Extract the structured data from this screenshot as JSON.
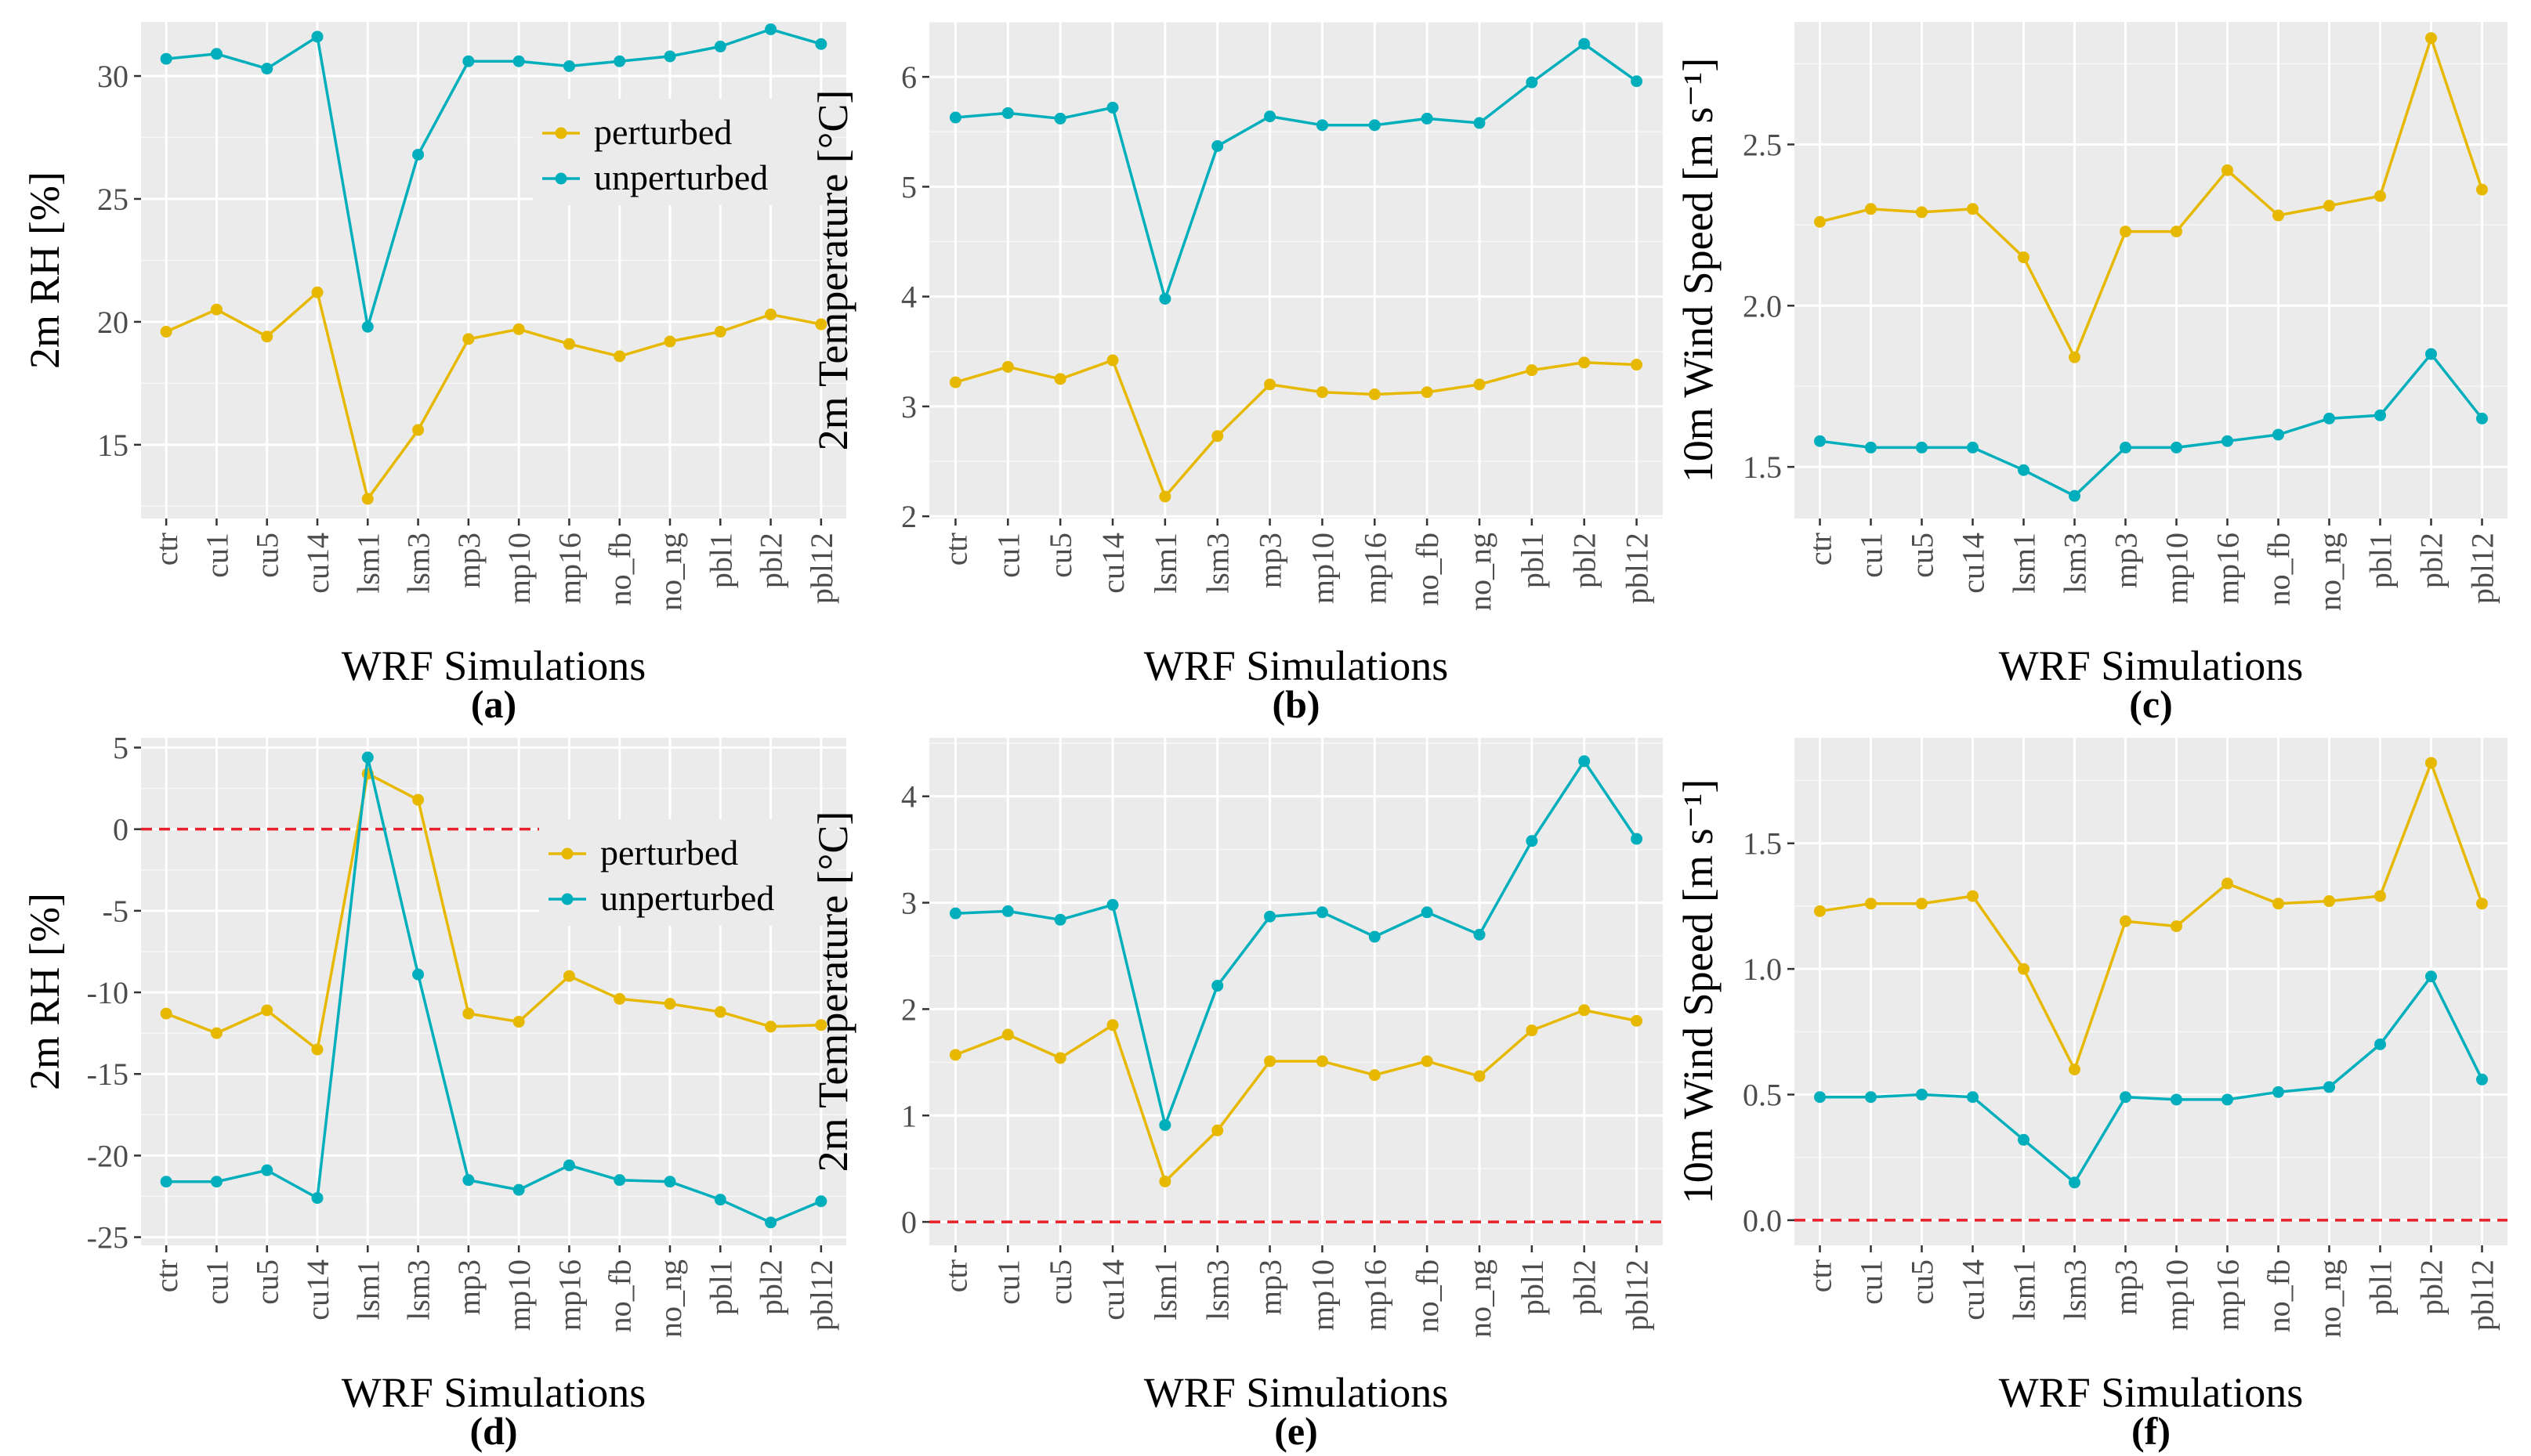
{
  "chart_data": [
    {
      "panel": "(a)",
      "type": "line",
      "categories": [
        "ctr",
        "cu1",
        "cu5",
        "cu14",
        "lsm1",
        "lsm3",
        "mp3",
        "mp10",
        "mp16",
        "no_fb",
        "no_ng",
        "pbl1",
        "pbl2",
        "pbl12"
      ],
      "series": [
        {
          "name": "perturbed",
          "color": "#E7B800",
          "values": [
            19.6,
            20.5,
            19.4,
            21.2,
            12.8,
            15.6,
            19.3,
            19.7,
            19.1,
            18.6,
            19.2,
            19.6,
            20.3,
            19.9
          ]
        },
        {
          "name": "unperturbed",
          "color": "#00AFBB",
          "values": [
            30.7,
            30.9,
            30.3,
            31.6,
            19.8,
            26.8,
            30.6,
            30.6,
            30.4,
            30.6,
            30.8,
            31.2,
            31.9,
            31.3
          ]
        }
      ],
      "title": "",
      "xlabel": "WRF Simulations",
      "ylabel": "2m RH [%]",
      "ylim": [
        12,
        32.2
      ],
      "yticks": [
        15,
        20,
        25,
        30
      ],
      "ytick_labels": [
        "15",
        "20",
        "25",
        "30"
      ],
      "legend": {
        "position": "top-right",
        "entries": [
          "perturbed",
          "unperturbed"
        ]
      },
      "zero_line": false,
      "grid": true
    },
    {
      "panel": "(b)",
      "type": "line",
      "categories": [
        "ctr",
        "cu1",
        "cu5",
        "cu14",
        "lsm1",
        "lsm3",
        "mp3",
        "mp10",
        "mp16",
        "no_fb",
        "no_ng",
        "pbl1",
        "pbl2",
        "pbl12"
      ],
      "series": [
        {
          "name": "perturbed",
          "color": "#E7B800",
          "values": [
            3.22,
            3.36,
            3.25,
            3.42,
            2.18,
            2.73,
            3.2,
            3.13,
            3.11,
            3.13,
            3.2,
            3.33,
            3.4,
            3.38
          ]
        },
        {
          "name": "unperturbed",
          "color": "#00AFBB",
          "values": [
            5.63,
            5.67,
            5.62,
            5.72,
            3.98,
            5.37,
            5.64,
            5.56,
            5.56,
            5.62,
            5.58,
            5.95,
            6.3,
            5.96
          ]
        }
      ],
      "title": "",
      "xlabel": "WRF Simulations",
      "ylabel": "2m Temperature [°C]",
      "ylim": [
        1.98,
        6.5
      ],
      "yticks": [
        2,
        3,
        4,
        5,
        6
      ],
      "ytick_labels": [
        "2",
        "3",
        "4",
        "5",
        "6"
      ],
      "legend": null,
      "zero_line": false,
      "grid": true
    },
    {
      "panel": "(c)",
      "type": "line",
      "categories": [
        "ctr",
        "cu1",
        "cu5",
        "cu14",
        "lsm1",
        "lsm3",
        "mp3",
        "mp10",
        "mp16",
        "no_fb",
        "no_ng",
        "pbl1",
        "pbl2",
        "pbl12"
      ],
      "series": [
        {
          "name": "perturbed",
          "color": "#E7B800",
          "values": [
            2.26,
            2.3,
            2.29,
            2.3,
            2.15,
            1.84,
            2.23,
            2.23,
            2.42,
            2.28,
            2.31,
            2.34,
            2.83,
            2.36
          ]
        },
        {
          "name": "unperturbed",
          "color": "#00AFBB",
          "values": [
            1.58,
            1.56,
            1.56,
            1.56,
            1.49,
            1.41,
            1.56,
            1.56,
            1.58,
            1.6,
            1.65,
            1.66,
            1.85,
            1.65
          ]
        }
      ],
      "title": "",
      "xlabel": "WRF Simulations",
      "ylabel": "10m Wind Speed [m s⁻¹]",
      "ylim": [
        1.34,
        2.88
      ],
      "yticks": [
        1.5,
        2.0,
        2.5
      ],
      "ytick_labels": [
        "1.5",
        "2.0",
        "2.5"
      ],
      "legend": null,
      "zero_line": false,
      "grid": true
    },
    {
      "panel": "(d)",
      "type": "line",
      "categories": [
        "ctr",
        "cu1",
        "cu5",
        "cu14",
        "lsm1",
        "lsm3",
        "mp3",
        "mp10",
        "mp16",
        "no_fb",
        "no_ng",
        "pbl1",
        "pbl2",
        "pbl12"
      ],
      "series": [
        {
          "name": "perturbed",
          "color": "#E7B800",
          "values": [
            -11.3,
            -12.5,
            -11.1,
            -13.5,
            3.4,
            1.8,
            -11.3,
            -11.8,
            -9,
            -10.4,
            -10.7,
            -11.2,
            -12.1,
            -12
          ]
        },
        {
          "name": "unperturbed",
          "color": "#00AFBB",
          "values": [
            -21.6,
            -21.6,
            -20.9,
            -22.6,
            4.4,
            -8.9,
            -21.5,
            -22.1,
            -20.6,
            -21.5,
            -21.6,
            -22.7,
            -24.1,
            -22.8
          ]
        }
      ],
      "title": "",
      "xlabel": "WRF Simulations",
      "ylabel": "2m RH [%]",
      "ylim": [
        -25.5,
        5.6
      ],
      "yticks": [
        -25,
        -20,
        -15,
        -10,
        -5,
        0,
        5
      ],
      "ytick_labels": [
        "-25",
        "-20",
        "-15",
        "-10",
        "-5",
        "0",
        "5"
      ],
      "legend": {
        "position": "top-right",
        "entries": [
          "perturbed",
          "unperturbed"
        ]
      },
      "zero_line": true,
      "grid": true
    },
    {
      "panel": "(e)",
      "type": "line",
      "categories": [
        "ctr",
        "cu1",
        "cu5",
        "cu14",
        "lsm1",
        "lsm3",
        "mp3",
        "mp10",
        "mp16",
        "no_fb",
        "no_ng",
        "pbl1",
        "pbl2",
        "pbl12"
      ],
      "series": [
        {
          "name": "perturbed",
          "color": "#E7B800",
          "values": [
            1.57,
            1.76,
            1.54,
            1.85,
            0.38,
            0.86,
            1.51,
            1.51,
            1.38,
            1.51,
            1.37,
            1.8,
            1.99,
            1.89
          ]
        },
        {
          "name": "unperturbed",
          "color": "#00AFBB",
          "values": [
            2.9,
            2.92,
            2.84,
            2.98,
            0.91,
            2.22,
            2.87,
            2.91,
            2.68,
            2.91,
            2.7,
            3.58,
            4.33,
            3.6
          ]
        }
      ],
      "title": "",
      "xlabel": "WRF Simulations",
      "ylabel": "2m Temperature [°C]",
      "ylim": [
        -0.22,
        4.55
      ],
      "yticks": [
        0,
        1,
        2,
        3,
        4
      ],
      "ytick_labels": [
        "0",
        "1",
        "2",
        "3",
        "4"
      ],
      "legend": null,
      "zero_line": true,
      "grid": true
    },
    {
      "panel": "(f)",
      "type": "line",
      "categories": [
        "ctr",
        "cu1",
        "cu5",
        "cu14",
        "lsm1",
        "lsm3",
        "mp3",
        "mp10",
        "mp16",
        "no_fb",
        "no_ng",
        "pbl1",
        "pbl2",
        "pbl12"
      ],
      "series": [
        {
          "name": "perturbed",
          "color": "#E7B800",
          "values": [
            1.23,
            1.26,
            1.26,
            1.29,
            1,
            0.6,
            1.19,
            1.17,
            1.34,
            1.26,
            1.27,
            1.29,
            1.82,
            1.26
          ]
        },
        {
          "name": "unperturbed",
          "color": "#00AFBB",
          "values": [
            0.49,
            0.49,
            0.5,
            0.49,
            0.32,
            0.15,
            0.49,
            0.48,
            0.48,
            0.51,
            0.53,
            0.7,
            0.97,
            0.56
          ]
        }
      ],
      "title": "",
      "xlabel": "WRF Simulations",
      "ylabel": "10m Wind Speed [m s⁻¹]",
      "ylim": [
        -0.1,
        1.92
      ],
      "yticks": [
        0,
        0.5,
        1.0,
        1.5
      ],
      "ytick_labels": [
        "0.0",
        "0.5",
        "1.0",
        "1.5"
      ],
      "legend": null,
      "zero_line": true,
      "grid": true
    }
  ],
  "colors": {
    "panel_background": "#EBEBEB",
    "grid_major": "#FFFFFF",
    "axis_text": "#4D4D4D",
    "tick": "#333333",
    "zero_line": "#E8202A"
  }
}
